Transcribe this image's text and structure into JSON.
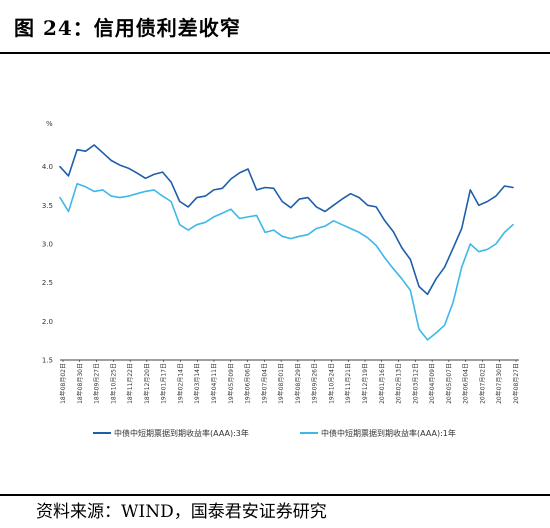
{
  "title": "图 24：信用债利差收窄",
  "source": "资料来源：WIND，国泰君安证券研究",
  "chart_data": {
    "type": "line",
    "ylabel": "%",
    "ylim": [
      1.5,
      4.5
    ],
    "yticks": [
      "1.5",
      "2.0",
      "2.5",
      "3.0",
      "3.5",
      "4.0"
    ],
    "yticks_values": [
      1.5,
      2.0,
      2.5,
      3.0,
      3.5,
      4.0
    ],
    "x_tick_labels": [
      "18年08月02日",
      "18年08月30日",
      "18年09月27日",
      "18年10月25日",
      "18年11月22日",
      "18年12月20日",
      "19年01月17日",
      "19年02月14日",
      "19年03月14日",
      "19年04月11日",
      "19年05月09日",
      "19年06月06日",
      "19年07月04日",
      "19年08月01日",
      "19年08月29日",
      "19年09月26日",
      "19年10月24日",
      "19年11月21日",
      "19年12月19日",
      "20年01月16日",
      "20年02月13日",
      "20年03月12日",
      "20年04月09日",
      "20年05月07日",
      "20年06月04日",
      "20年07月02日",
      "20年07月30日",
      "20年08月27日"
    ],
    "grid": false,
    "legend_position": "bottom",
    "series": [
      {
        "name": "中债中短期票据到期收益率(AAA):3年",
        "color": "#1f5ea8",
        "values": [
          4.0,
          3.88,
          4.22,
          4.2,
          4.28,
          4.18,
          4.08,
          4.02,
          3.98,
          3.92,
          3.85,
          3.9,
          3.93,
          3.8,
          3.55,
          3.48,
          3.6,
          3.62,
          3.7,
          3.72,
          3.84,
          3.92,
          3.97,
          3.7,
          3.73,
          3.72,
          3.55,
          3.47,
          3.58,
          3.6,
          3.48,
          3.42,
          3.5,
          3.58,
          3.65,
          3.6,
          3.5,
          3.48,
          3.3,
          3.16,
          2.95,
          2.8,
          2.45,
          2.35,
          2.55,
          2.7,
          2.95,
          3.2,
          3.7,
          3.5,
          3.55,
          3.62,
          3.75,
          3.73
        ]
      },
      {
        "name": "中债中短期票据到期收益率(AAA):1年",
        "color": "#3db8e8",
        "values": [
          3.6,
          3.42,
          3.78,
          3.74,
          3.68,
          3.7,
          3.62,
          3.6,
          3.62,
          3.65,
          3.68,
          3.7,
          3.62,
          3.55,
          3.25,
          3.18,
          3.25,
          3.28,
          3.35,
          3.4,
          3.45,
          3.33,
          3.35,
          3.37,
          3.15,
          3.18,
          3.1,
          3.07,
          3.1,
          3.12,
          3.2,
          3.23,
          3.3,
          3.25,
          3.2,
          3.15,
          3.08,
          2.98,
          2.82,
          2.68,
          2.55,
          2.4,
          1.9,
          1.76,
          1.85,
          1.95,
          2.25,
          2.7,
          3.0,
          2.9,
          2.93,
          3.0,
          3.15,
          3.25
        ]
      }
    ]
  }
}
